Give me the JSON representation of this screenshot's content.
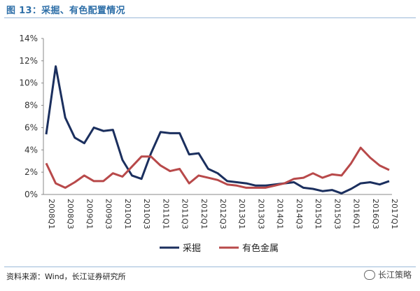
{
  "header": {
    "title": "图 13：采掘、有色配置情况"
  },
  "footer": {
    "source": "资料来源：Wind，长江证券研究所",
    "watermark": "长江策略",
    "watermark_icon": "wechat-icon"
  },
  "chart_data": {
    "type": "line",
    "title": "",
    "xlabel": "",
    "ylabel": "",
    "ylim": [
      0,
      14
    ],
    "y_ticks": [
      "0%",
      "2%",
      "4%",
      "6%",
      "8%",
      "10%",
      "12%",
      "14%"
    ],
    "x": [
      "2008Q1",
      "2008Q2",
      "2008Q3",
      "2008Q4",
      "2009Q1",
      "2009Q2",
      "2009Q3",
      "2009Q4",
      "2010Q1",
      "2010Q2",
      "2010Q3",
      "2010Q4",
      "2011Q1",
      "2011Q2",
      "2011Q3",
      "2011Q4",
      "2012Q1",
      "2012Q2",
      "2012Q3",
      "2012Q4",
      "2013Q1",
      "2013Q2",
      "2013Q3",
      "2013Q4",
      "2014Q1",
      "2014Q2",
      "2014Q3",
      "2014Q4",
      "2015Q1",
      "2015Q2",
      "2015Q3",
      "2015Q4",
      "2016Q1",
      "2016Q2",
      "2016Q3",
      "2016Q4",
      "2017Q1"
    ],
    "x_tick_labels": [
      "2008Q1",
      "2008Q3",
      "2009Q1",
      "2009Q3",
      "2010Q1",
      "2010Q3",
      "2011Q1",
      "2011Q3",
      "2012Q1",
      "2012Q3",
      "2013Q1",
      "2013Q3",
      "2014Q1",
      "2014Q3",
      "2015Q1",
      "2015Q3",
      "2016Q1",
      "2016Q3",
      "2017Q1"
    ],
    "grid": false,
    "legend_position": "bottom",
    "series": [
      {
        "name": "采掘",
        "color": "#1b2f5e",
        "values": [
          5.4,
          11.5,
          6.9,
          5.1,
          4.6,
          6.0,
          5.7,
          5.8,
          3.1,
          1.7,
          1.4,
          3.7,
          5.6,
          5.5,
          5.5,
          3.6,
          3.7,
          2.3,
          1.9,
          1.2,
          1.1,
          1.0,
          0.8,
          0.8,
          0.9,
          1.0,
          1.1,
          0.6,
          0.5,
          0.3,
          0.4,
          0.1,
          0.5,
          1.0,
          1.1,
          0.9,
          1.2
        ]
      },
      {
        "name": "有色金属",
        "color": "#b8494a",
        "values": [
          2.8,
          1.0,
          0.6,
          1.1,
          1.7,
          1.2,
          1.2,
          1.9,
          1.6,
          2.5,
          3.4,
          3.4,
          2.6,
          2.1,
          2.3,
          1.0,
          1.7,
          1.5,
          1.3,
          0.9,
          0.8,
          0.6,
          0.6,
          0.6,
          0.8,
          1.0,
          1.4,
          1.5,
          1.9,
          1.5,
          1.8,
          1.7,
          2.8,
          4.2,
          3.3,
          2.6,
          2.2
        ]
      }
    ]
  }
}
